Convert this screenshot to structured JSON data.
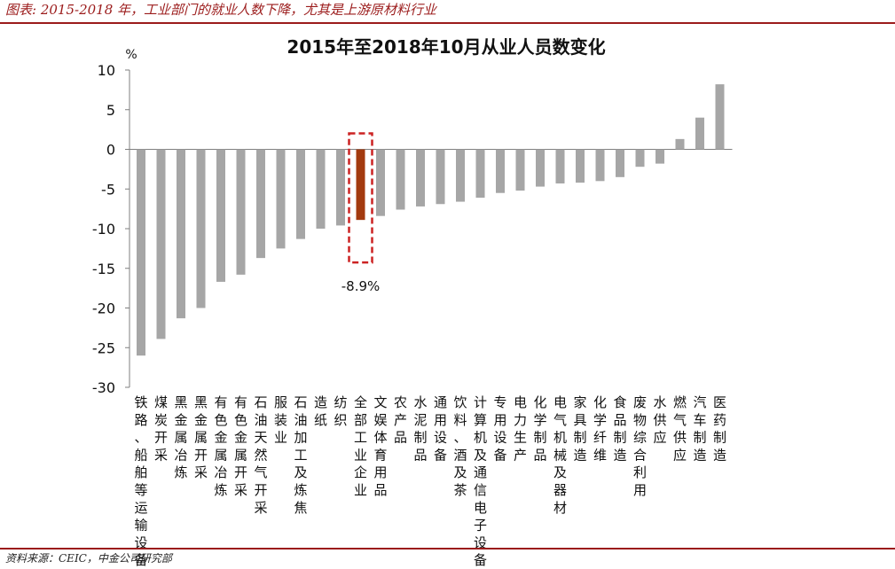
{
  "caption": "图表: 2015-2018 年，工业部门的就业人数下降，尤其是上游原材料行业",
  "source": "资料来源：CEIC，中金公司研究部",
  "colors": {
    "accent_red": "#9b1b1b",
    "bar_gray": "#a6a6a6",
    "highlight_bar": "#a33a0f",
    "highlight_box": "#cc2222"
  },
  "chart_data": {
    "type": "bar",
    "title": "2015年至2018年10月从业人员数变化",
    "ylabel": "%",
    "ylim": [
      -30,
      10
    ],
    "yticks": [
      10,
      5,
      0,
      -5,
      -10,
      -15,
      -20,
      -25,
      -30
    ],
    "grid": false,
    "categories": [
      "铁路、船舶等运输设备",
      "煤炭开采",
      "黑金属冶炼",
      "黑金属开采",
      "有色金属冶炼",
      "有色金属开采",
      "石油天然气开采",
      "服装业",
      "石油加工及炼焦",
      "造纸",
      "纺织",
      "全部工业企业",
      "文娱体育用品",
      "农产品",
      "水泥制品",
      "通用设备",
      "饮料、酒及茶",
      "计算机及通信电子设备",
      "专用设备",
      "电力生产",
      "化学制品",
      "电气机械及器材",
      "家具制造",
      "化学纤维",
      "食品制造",
      "废物综合利用",
      "水供应",
      "燃气供应",
      "汽车制造",
      "医药制造"
    ],
    "values": [
      -26.0,
      -23.9,
      -21.3,
      -20.0,
      -16.7,
      -15.8,
      -13.7,
      -12.5,
      -11.3,
      -10.0,
      -9.6,
      -8.9,
      -8.4,
      -7.6,
      -7.2,
      -6.9,
      -6.6,
      -6.1,
      -5.5,
      -5.2,
      -4.7,
      -4.3,
      -4.2,
      -4.0,
      -3.5,
      -2.2,
      -1.8,
      1.3,
      4.0,
      8.2
    ],
    "highlight_index": 11,
    "annotation": "-8.9%"
  }
}
